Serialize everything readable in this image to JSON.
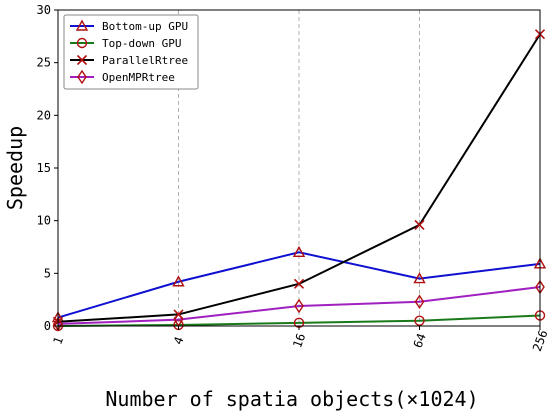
{
  "chart_data": {
    "type": "line",
    "title": "",
    "xlabel": "Number of spatia objects(×1024)",
    "ylabel": "Speedup",
    "x": [
      "1",
      "4",
      "16",
      "64",
      "256"
    ],
    "ylim": [
      0,
      30
    ],
    "yticks": [
      0,
      5,
      10,
      15,
      20,
      25,
      30
    ],
    "grid": "x-dashed",
    "legend_position": "top-left",
    "series": [
      {
        "name": "Bottom-up GPU",
        "values": [
          0.8,
          4.2,
          7.0,
          4.5,
          5.9
        ],
        "color": "#1010d0",
        "marker": "triangle"
      },
      {
        "name": "Top-down GPU",
        "values": [
          0.0,
          0.1,
          0.3,
          0.5,
          1.0
        ],
        "color": "#1a7a1a",
        "marker": "circle"
      },
      {
        "name": "ParallelRtree",
        "values": [
          0.4,
          1.1,
          4.0,
          9.6,
          27.7
        ],
        "color": "#000000",
        "marker": "x"
      },
      {
        "name": "OpenMPRtree",
        "values": [
          0.2,
          0.6,
          1.9,
          2.3,
          3.7
        ],
        "color": "#a020c0",
        "marker": "diamond"
      }
    ],
    "marker_edge_color": "#b01010"
  }
}
